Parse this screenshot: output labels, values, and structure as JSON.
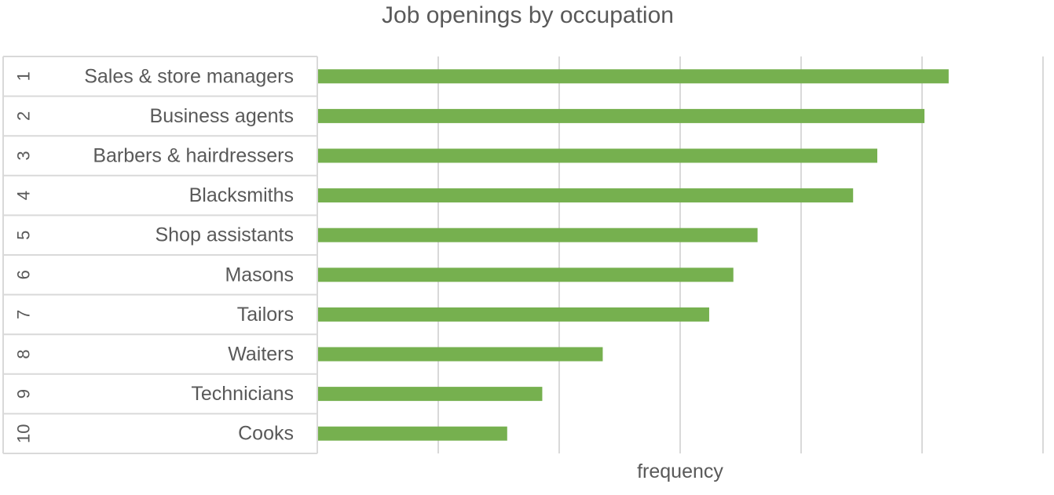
{
  "chart_data": {
    "type": "bar",
    "orientation": "horizontal",
    "title": "Job openings by occupation",
    "xlabel": "frequency",
    "ylabel": "",
    "ranks": [
      "1",
      "2",
      "3",
      "4",
      "5",
      "6",
      "7",
      "8",
      "9",
      "10"
    ],
    "categories": [
      "Sales & store managers",
      "Business agents",
      "Barbers & hairdressers",
      "Blacksmiths",
      "Shop assistants",
      "Masons",
      "Tailors",
      "Waiters",
      "Technicians",
      "Cooks"
    ],
    "values": [
      5.22,
      5.02,
      4.63,
      4.43,
      3.64,
      3.44,
      3.24,
      2.36,
      1.86,
      1.57
    ],
    "xlim": [
      0,
      6
    ],
    "gridlines": [
      1,
      2,
      3,
      4,
      5,
      6
    ],
    "grid": true,
    "tick_labels_shown": false,
    "legend": "none",
    "bar_color": "#76b04f",
    "grid_color": "#d9d9d9"
  }
}
